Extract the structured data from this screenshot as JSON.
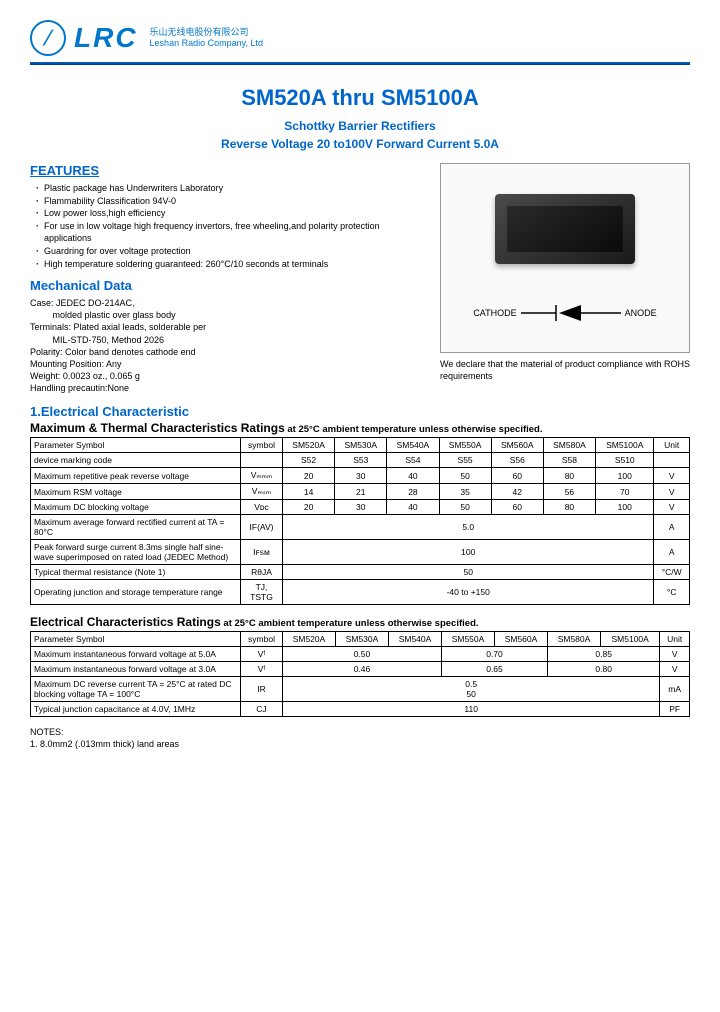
{
  "logo": {
    "brand": "LRC",
    "cn": "乐山无线电股份有限公司",
    "en": "Leshan Radio Company, Ltd"
  },
  "title": "SM520A thru SM5100A",
  "subtitle1": "Schottky Barrier Rectifiers",
  "subtitle2": "Reverse Voltage 20 to100V Forward Current 5.0A",
  "features": {
    "heading": "FEATURES",
    "items": [
      "Plastic package has Underwriters Laboratory",
      "Flammability Classification 94V-0",
      "Low power loss,high efficiency",
      "For use in low voltage high frequency invertors, free wheeling,and polarity protection applications",
      "Guardring for over voltage protection",
      "High temperature soldering guaranteed: 260°C/10 seconds at terminals"
    ]
  },
  "mech": {
    "heading": "Mechanical Data",
    "lines": [
      "Case: JEDEC DO-214AC,",
      "         molded plastic over glass body",
      "Terminals: Plated axial leads, solderable per",
      "         MIL-STD-750, Method 2026",
      "Polarity: Color band denotes cathode end",
      "Mounting Position: Any",
      "Weight: 0.0023 oz., 0.065 g",
      "Handling precautin:None"
    ]
  },
  "diode": {
    "cathode": "CATHODE",
    "anode": "ANODE"
  },
  "rohs": "We declare that the material of product compliance with ROHS requirements",
  "sec1": {
    "heading": "1.Electrical Characteristic"
  },
  "table1": {
    "title": "Maximum & Thermal Characteristics Ratings",
    "cond": " at 25°C ambient temperature unless otherwise specified.",
    "headers": [
      "Parameter Symbol",
      "symbol",
      "SM520A",
      "SM530A",
      "SM540A",
      "SM550A",
      "SM560A",
      "SM580A",
      "SM5100A",
      "Unit"
    ],
    "rows": [
      {
        "p": "device marking code",
        "s": "",
        "v": [
          "S52",
          "S53",
          "S54",
          "S55",
          "S56",
          "S58",
          "S510"
        ],
        "u": ""
      },
      {
        "p": "Maximum repetitive peak reverse voltage",
        "s": "Vₘₘₘ",
        "v": [
          "20",
          "30",
          "40",
          "50",
          "60",
          "80",
          "100"
        ],
        "u": "V"
      },
      {
        "p": "Maximum RSM voltage",
        "s": "Vₘₛₘ",
        "v": [
          "14",
          "21",
          "28",
          "35",
          "42",
          "56",
          "70"
        ],
        "u": "V"
      },
      {
        "p": "Maximum DC blocking voltage",
        "s": "Vᴅᴄ",
        "v": [
          "20",
          "30",
          "40",
          "50",
          "60",
          "80",
          "100"
        ],
        "u": "V"
      },
      {
        "p": "Maximum average forward rectified current at TA = 80°C",
        "s": "IF(AV)",
        "span": "5.0",
        "u": "A"
      },
      {
        "p": "Peak forward surge current 8.3ms single half sine-wave superimposed on rated load (JEDEC Method)",
        "s": "Iꜰꜱᴍ",
        "span": "100",
        "u": "A"
      },
      {
        "p": "Typical thermal resistance (Note 1)",
        "s": "RθJA",
        "span": "50",
        "u": "°C/W"
      },
      {
        "p": "Operating junction and storage temperature range",
        "s": "TJ, TSTG",
        "span": "-40 to +150",
        "u": "°C"
      }
    ]
  },
  "table2": {
    "title": "Electrical Characteristics Ratings",
    "cond": " at 25°C ambient temperature unless otherwise specified.",
    "headers": [
      "Parameter Symbol",
      "symbol",
      "SM520A",
      "SM530A",
      "SM540A",
      "SM550A",
      "SM560A",
      "SM580A",
      "SM5100A",
      "Unit"
    ],
    "rows": [
      {
        "p": "Maximum instantaneous forward voltage at 5.0A",
        "s": "Vᶠ",
        "sub": [
          {
            "c": 3,
            "v": "0.50"
          },
          {
            "c": 2,
            "v": "0.70"
          },
          {
            "c": 2,
            "v": "0.85"
          }
        ],
        "u": "V"
      },
      {
        "p": "Maximum instantaneous forward voltage at 3.0A",
        "s": "Vᶠ",
        "sub": [
          {
            "c": 3,
            "v": "0.46"
          },
          {
            "c": 2,
            "v": "0.65"
          },
          {
            "c": 2,
            "v": "0.80"
          }
        ],
        "u": "V"
      },
      {
        "p": "Maximum DC reverse current TA = 25°C at rated DC blocking voltage TA = 100°C",
        "s": "IR",
        "stack": [
          "0.5",
          "50"
        ],
        "u": "mA"
      },
      {
        "p": "Typical junction capacitance at 4.0V, 1MHz",
        "s": "CJ",
        "span": "110",
        "u": "PF"
      }
    ]
  },
  "notes": {
    "h": "NOTES:",
    "n1": "1. 8.0mm2 (.013mm thick) land areas"
  }
}
